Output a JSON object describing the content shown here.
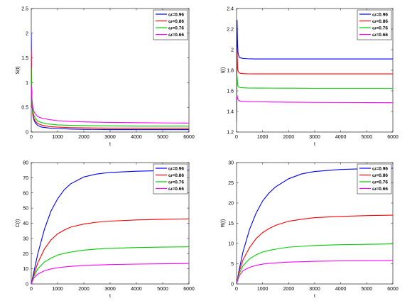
{
  "chart_data": [
    {
      "type": "line",
      "xlabel": "t",
      "ylabel": "S(t)",
      "xlim": [
        0,
        6000
      ],
      "ylim": [
        0,
        2.5
      ],
      "xticks": [
        "0",
        "1000",
        "2000",
        "3000",
        "4000",
        "5000",
        "6000"
      ],
      "yticks": [
        "0",
        "0.5",
        "1",
        "1.5",
        "2",
        "2.5"
      ],
      "legend_position": "top-right",
      "grid": false,
      "series": [
        {
          "name": "ω=0.96",
          "color": "#0000ff",
          "x": [
            0,
            10,
            30,
            60,
            100,
            150,
            250,
            400,
            700,
            1000,
            1500,
            2000,
            3000,
            4000,
            5000,
            6000
          ],
          "y": [
            2.0,
            1.0,
            0.55,
            0.35,
            0.25,
            0.19,
            0.13,
            0.1,
            0.08,
            0.07,
            0.06,
            0.055,
            0.05,
            0.05,
            0.05,
            0.05
          ]
        },
        {
          "name": "ω=0.86",
          "color": "#ff0000",
          "x": [
            0,
            10,
            30,
            60,
            100,
            150,
            250,
            400,
            700,
            1000,
            1500,
            2000,
            3000,
            4000,
            5000,
            6000
          ],
          "y": [
            1.65,
            0.95,
            0.55,
            0.38,
            0.28,
            0.22,
            0.17,
            0.14,
            0.11,
            0.1,
            0.09,
            0.085,
            0.08,
            0.08,
            0.08,
            0.08
          ]
        },
        {
          "name": "ω=0.76",
          "color": "#00cc00",
          "x": [
            0,
            10,
            30,
            60,
            100,
            150,
            250,
            400,
            700,
            1000,
            1500,
            2000,
            3000,
            4000,
            5000,
            6000
          ],
          "y": [
            1.3,
            0.9,
            0.6,
            0.43,
            0.34,
            0.28,
            0.22,
            0.19,
            0.16,
            0.145,
            0.135,
            0.13,
            0.125,
            0.12,
            0.12,
            0.12
          ]
        },
        {
          "name": "ω=0.66",
          "color": "#ff00ff",
          "x": [
            0,
            10,
            30,
            60,
            100,
            150,
            250,
            400,
            700,
            1000,
            1500,
            2000,
            3000,
            4000,
            5000,
            6000
          ],
          "y": [
            0.95,
            0.85,
            0.65,
            0.5,
            0.42,
            0.37,
            0.31,
            0.28,
            0.25,
            0.23,
            0.215,
            0.205,
            0.195,
            0.19,
            0.185,
            0.18
          ]
        }
      ]
    },
    {
      "type": "line",
      "xlabel": "t",
      "ylabel": "I(t)",
      "xlim": [
        0,
        6000
      ],
      "ylim": [
        1.2,
        2.4
      ],
      "xticks": [
        "0",
        "1000",
        "2000",
        "3000",
        "4000",
        "5000",
        "6000"
      ],
      "yticks": [
        "1.2",
        "1.4",
        "1.6",
        "1.8",
        "2",
        "2.2",
        "2.4"
      ],
      "legend_position": "top-right",
      "grid": false,
      "series": [
        {
          "name": "ω=0.96",
          "color": "#0000ff",
          "x": [
            0,
            20,
            40,
            60,
            100,
            150,
            250,
            400,
            700,
            1000,
            2000,
            3000,
            4000,
            5000,
            6000
          ],
          "y": [
            1.3,
            2.29,
            2.05,
            1.96,
            1.93,
            1.92,
            1.915,
            1.912,
            1.91,
            1.91,
            1.91,
            1.91,
            1.91,
            1.91,
            1.91
          ]
        },
        {
          "name": "ω=0.86",
          "color": "#ff0000",
          "x": [
            0,
            20,
            40,
            60,
            100,
            150,
            250,
            400,
            700,
            1000,
            2000,
            3000,
            4000,
            5000,
            6000
          ],
          "y": [
            1.3,
            2.0,
            1.83,
            1.79,
            1.775,
            1.77,
            1.768,
            1.766,
            1.765,
            1.765,
            1.765,
            1.765,
            1.765,
            1.765,
            1.765
          ]
        },
        {
          "name": "ω=0.76",
          "color": "#00cc00",
          "x": [
            0,
            20,
            40,
            60,
            100,
            150,
            250,
            400,
            700,
            1000,
            2000,
            3000,
            4000,
            5000,
            6000
          ],
          "y": [
            1.3,
            1.75,
            1.67,
            1.645,
            1.635,
            1.632,
            1.63,
            1.628,
            1.627,
            1.627,
            1.626,
            1.625,
            1.625,
            1.625,
            1.625
          ]
        },
        {
          "name": "ω=0.66",
          "color": "#ff00ff",
          "x": [
            0,
            20,
            40,
            60,
            100,
            150,
            250,
            400,
            700,
            1000,
            2000,
            3000,
            4000,
            5000,
            6000
          ],
          "y": [
            1.3,
            1.56,
            1.53,
            1.515,
            1.505,
            1.5,
            1.497,
            1.495,
            1.494,
            1.493,
            1.49,
            1.488,
            1.487,
            1.486,
            1.485
          ]
        }
      ]
    },
    {
      "type": "line",
      "xlabel": "t",
      "ylabel": "C(t)",
      "xlim": [
        0,
        6000
      ],
      "ylim": [
        0,
        80
      ],
      "xticks": [
        "0",
        "1000",
        "2000",
        "3000",
        "4000",
        "5000",
        "6000"
      ],
      "yticks": [
        "0",
        "10",
        "20",
        "30",
        "40",
        "50",
        "60",
        "70",
        "80"
      ],
      "legend_position": "top-right",
      "grid": false,
      "series": [
        {
          "name": "ω=0.96",
          "color": "#0000ff",
          "x": [
            0,
            100,
            250,
            500,
            750,
            1000,
            1250,
            1500,
            2000,
            2500,
            3000,
            4000,
            5000,
            6000
          ],
          "y": [
            0,
            8,
            20,
            36,
            48,
            56,
            62,
            66,
            70.5,
            72.5,
            73.5,
            74.3,
            74.7,
            75
          ]
        },
        {
          "name": "ω=0.86",
          "color": "#ff0000",
          "x": [
            0,
            100,
            250,
            500,
            750,
            1000,
            1250,
            1500,
            2000,
            2500,
            3000,
            4000,
            5000,
            6000
          ],
          "y": [
            0,
            6,
            14,
            23,
            29,
            33,
            35.5,
            37.5,
            39.5,
            40.7,
            41.4,
            42.2,
            42.6,
            42.9
          ]
        },
        {
          "name": "ω=0.76",
          "color": "#00cc00",
          "x": [
            0,
            100,
            250,
            500,
            750,
            1000,
            1250,
            1500,
            2000,
            2500,
            3000,
            4000,
            5000,
            6000
          ],
          "y": [
            0,
            5,
            10,
            14.5,
            17,
            19,
            20.2,
            21,
            22.3,
            23,
            23.5,
            24,
            24.3,
            24.5
          ]
        },
        {
          "name": "ω=0.66",
          "color": "#ff00ff",
          "x": [
            0,
            100,
            250,
            500,
            750,
            1000,
            1250,
            1500,
            2000,
            2500,
            3000,
            4000,
            5000,
            6000
          ],
          "y": [
            0,
            4,
            6.5,
            8.7,
            9.9,
            10.7,
            11.2,
            11.6,
            12.2,
            12.5,
            12.8,
            13.1,
            13.3,
            13.5
          ]
        }
      ]
    },
    {
      "type": "line",
      "xlabel": "t",
      "ylabel": "R(t)",
      "xlim": [
        0,
        6000
      ],
      "ylim": [
        0,
        30
      ],
      "xticks": [
        "0",
        "1000",
        "2000",
        "3000",
        "4000",
        "5000",
        "6000"
      ],
      "yticks": [
        "0",
        "5",
        "10",
        "15",
        "20",
        "25",
        "30"
      ],
      "legend_position": "top-right",
      "grid": false,
      "series": [
        {
          "name": "ω=0.96",
          "color": "#0000ff",
          "x": [
            0,
            100,
            250,
            500,
            750,
            1000,
            1250,
            1500,
            2000,
            2500,
            3000,
            4000,
            5000,
            6000
          ],
          "y": [
            0,
            3.5,
            8,
            13.5,
            17.5,
            20.5,
            22.5,
            24,
            26,
            27.2,
            27.8,
            28.3,
            28.5,
            28.6
          ]
        },
        {
          "name": "ω=0.86",
          "color": "#ff0000",
          "x": [
            0,
            100,
            250,
            500,
            750,
            1000,
            1250,
            1500,
            2000,
            2500,
            3000,
            4000,
            5000,
            6000
          ],
          "y": [
            0,
            3,
            6,
            9,
            11.2,
            12.7,
            13.7,
            14.5,
            15.5,
            16,
            16.4,
            16.7,
            16.9,
            17
          ]
        },
        {
          "name": "ω=0.76",
          "color": "#00cc00",
          "x": [
            0,
            100,
            250,
            500,
            750,
            1000,
            1250,
            1500,
            2000,
            2500,
            3000,
            4000,
            5000,
            6000
          ],
          "y": [
            0,
            2.5,
            4.5,
            6.2,
            7.2,
            7.9,
            8.3,
            8.6,
            9.1,
            9.3,
            9.5,
            9.7,
            9.8,
            9.9
          ]
        },
        {
          "name": "ω=0.66",
          "color": "#ff00ff",
          "x": [
            0,
            100,
            250,
            500,
            750,
            1000,
            1250,
            1500,
            2000,
            2500,
            3000,
            4000,
            5000,
            6000
          ],
          "y": [
            0,
            2,
            3.3,
            4.1,
            4.6,
            4.9,
            5.1,
            5.2,
            5.4,
            5.5,
            5.6,
            5.7,
            5.75,
            5.8
          ]
        }
      ]
    }
  ]
}
